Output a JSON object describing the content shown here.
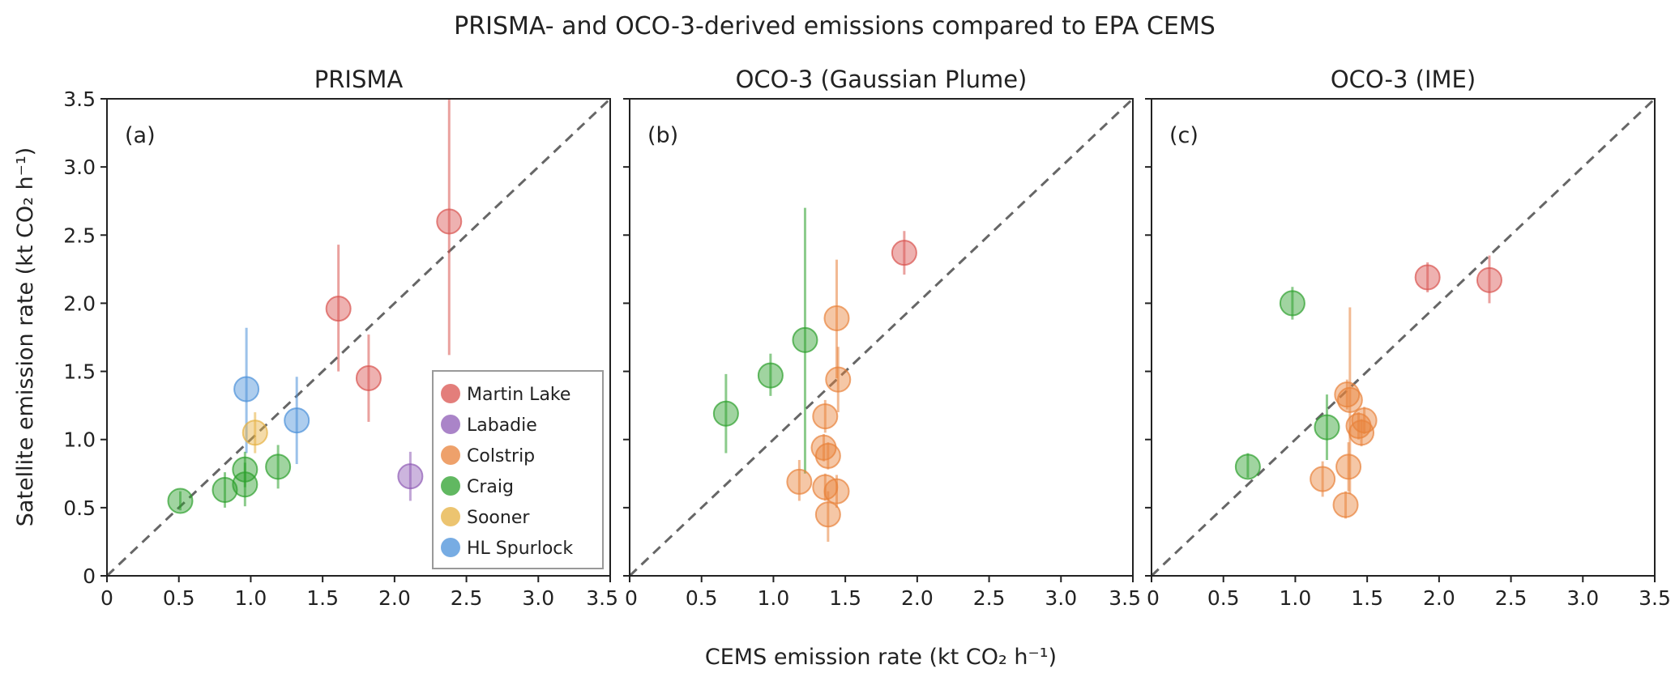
{
  "title": "PRISMA- and OCO-3-derived emissions compared to EPA CEMS",
  "colors": {
    "Martin Lake": "#d9534f",
    "Labadie": "#8e5bb5",
    "Colstrip": "#e8823a",
    "Craig": "#2ca02c",
    "Sooner": "#e6b040",
    "HL Spurlock": "#4a90d9"
  },
  "chart_data": [
    {
      "type": "scatter",
      "title": "PRISMA",
      "label": "(a)",
      "xlabel": "CEMS emission rate (kt CO₂ h⁻¹)",
      "ylabel": "Satellite emission rate (kt CO₂ h⁻¹)",
      "xlim": [
        0,
        3.5
      ],
      "ylim": [
        0,
        3.5
      ],
      "legend": "lower-right",
      "ticks": [
        "0",
        "0.5",
        "1.0",
        "1.5",
        "2.0",
        "2.5",
        "3.0",
        "3.5"
      ],
      "points": [
        {
          "site": "Martin Lake",
          "x": 2.38,
          "y": 2.6,
          "lo": 1.62,
          "hi": 3.5
        },
        {
          "site": "Martin Lake",
          "x": 1.61,
          "y": 1.96,
          "lo": 1.5,
          "hi": 2.43
        },
        {
          "site": "Martin Lake",
          "x": 1.82,
          "y": 1.45,
          "lo": 1.13,
          "hi": 1.77
        },
        {
          "site": "Labadie",
          "x": 2.11,
          "y": 0.73,
          "lo": 0.55,
          "hi": 0.91
        },
        {
          "site": "HL Spurlock",
          "x": 0.97,
          "y": 1.37,
          "lo": 0.9,
          "hi": 1.82
        },
        {
          "site": "HL Spurlock",
          "x": 1.32,
          "y": 1.14,
          "lo": 0.82,
          "hi": 1.46
        },
        {
          "site": "Sooner",
          "x": 1.03,
          "y": 1.05,
          "lo": 0.9,
          "hi": 1.2
        },
        {
          "site": "Craig",
          "x": 0.51,
          "y": 0.55,
          "lo": 0.48,
          "hi": 0.62
        },
        {
          "site": "Craig",
          "x": 0.82,
          "y": 0.63,
          "lo": 0.5,
          "hi": 0.76
        },
        {
          "site": "Craig",
          "x": 0.96,
          "y": 0.67,
          "lo": 0.51,
          "hi": 0.83
        },
        {
          "site": "Craig",
          "x": 0.96,
          "y": 0.78,
          "lo": 0.65,
          "hi": 0.91
        },
        {
          "site": "Craig",
          "x": 1.19,
          "y": 0.8,
          "lo": 0.64,
          "hi": 0.96
        }
      ],
      "legend_entries": [
        "Martin Lake",
        "Labadie",
        "Colstrip",
        "Craig",
        "Sooner",
        "HL Spurlock"
      ]
    },
    {
      "type": "scatter",
      "title": "OCO-3 (Gaussian Plume)",
      "label": "(b)",
      "xlim": [
        0,
        3.5
      ],
      "ylim": [
        0,
        3.5
      ],
      "ticks": [
        "0",
        "0.5",
        "1.0",
        "1.5",
        "2.0",
        "2.5",
        "3.0",
        "3.5"
      ],
      "points": [
        {
          "site": "Martin Lake",
          "x": 1.91,
          "y": 2.37,
          "lo": 2.21,
          "hi": 2.53
        },
        {
          "site": "Craig",
          "x": 0.67,
          "y": 1.19,
          "lo": 0.9,
          "hi": 1.48
        },
        {
          "site": "Craig",
          "x": 0.98,
          "y": 1.47,
          "lo": 1.32,
          "hi": 1.63
        },
        {
          "site": "Craig",
          "x": 1.22,
          "y": 1.73,
          "lo": 0.75,
          "hi": 2.7
        },
        {
          "site": "Colstrip",
          "x": 1.44,
          "y": 1.89,
          "lo": 1.45,
          "hi": 2.32
        },
        {
          "site": "Colstrip",
          "x": 1.45,
          "y": 1.44,
          "lo": 1.2,
          "hi": 1.68
        },
        {
          "site": "Colstrip",
          "x": 1.36,
          "y": 1.17,
          "lo": 1.05,
          "hi": 1.29
        },
        {
          "site": "Colstrip",
          "x": 1.35,
          "y": 0.94,
          "lo": 0.84,
          "hi": 1.04
        },
        {
          "site": "Colstrip",
          "x": 1.38,
          "y": 0.88,
          "lo": 0.78,
          "hi": 0.98
        },
        {
          "site": "Colstrip",
          "x": 1.18,
          "y": 0.69,
          "lo": 0.55,
          "hi": 0.85
        },
        {
          "site": "Colstrip",
          "x": 1.36,
          "y": 0.65,
          "lo": 0.55,
          "hi": 0.75
        },
        {
          "site": "Colstrip",
          "x": 1.44,
          "y": 0.62,
          "lo": 0.5,
          "hi": 0.74
        },
        {
          "site": "Colstrip",
          "x": 1.38,
          "y": 0.45,
          "lo": 0.25,
          "hi": 0.62
        }
      ]
    },
    {
      "type": "scatter",
      "title": "OCO-3 (IME)",
      "label": "(c)",
      "xlim": [
        0,
        3.5
      ],
      "ylim": [
        0,
        3.5
      ],
      "ticks": [
        "0",
        "0.5",
        "1.0",
        "1.5",
        "2.0",
        "2.5",
        "3.0",
        "3.5"
      ],
      "points": [
        {
          "site": "Martin Lake",
          "x": 1.92,
          "y": 2.19,
          "lo": 2.08,
          "hi": 2.3
        },
        {
          "site": "Martin Lake",
          "x": 2.35,
          "y": 2.17,
          "lo": 2.0,
          "hi": 2.35
        },
        {
          "site": "Craig",
          "x": 0.98,
          "y": 2.0,
          "lo": 1.88,
          "hi": 2.12
        },
        {
          "site": "Craig",
          "x": 1.22,
          "y": 1.09,
          "lo": 0.85,
          "hi": 1.33
        },
        {
          "site": "Craig",
          "x": 0.67,
          "y": 0.8,
          "lo": 0.72,
          "hi": 0.9
        },
        {
          "site": "Colstrip",
          "x": 1.36,
          "y": 1.33,
          "lo": 1.22,
          "hi": 1.44
        },
        {
          "site": "Colstrip",
          "x": 1.38,
          "y": 1.29,
          "lo": 0.6,
          "hi": 1.97
        },
        {
          "site": "Colstrip",
          "x": 1.48,
          "y": 1.14,
          "lo": 1.04,
          "hi": 1.24
        },
        {
          "site": "Colstrip",
          "x": 1.44,
          "y": 1.1,
          "lo": 1.0,
          "hi": 1.2
        },
        {
          "site": "Colstrip",
          "x": 1.46,
          "y": 1.05,
          "lo": 0.95,
          "hi": 1.15
        },
        {
          "site": "Colstrip",
          "x": 1.37,
          "y": 0.8,
          "lo": 0.62,
          "hi": 0.98
        },
        {
          "site": "Colstrip",
          "x": 1.19,
          "y": 0.71,
          "lo": 0.58,
          "hi": 0.84
        },
        {
          "site": "Colstrip",
          "x": 1.35,
          "y": 0.52,
          "lo": 0.42,
          "hi": 0.62
        }
      ]
    }
  ]
}
